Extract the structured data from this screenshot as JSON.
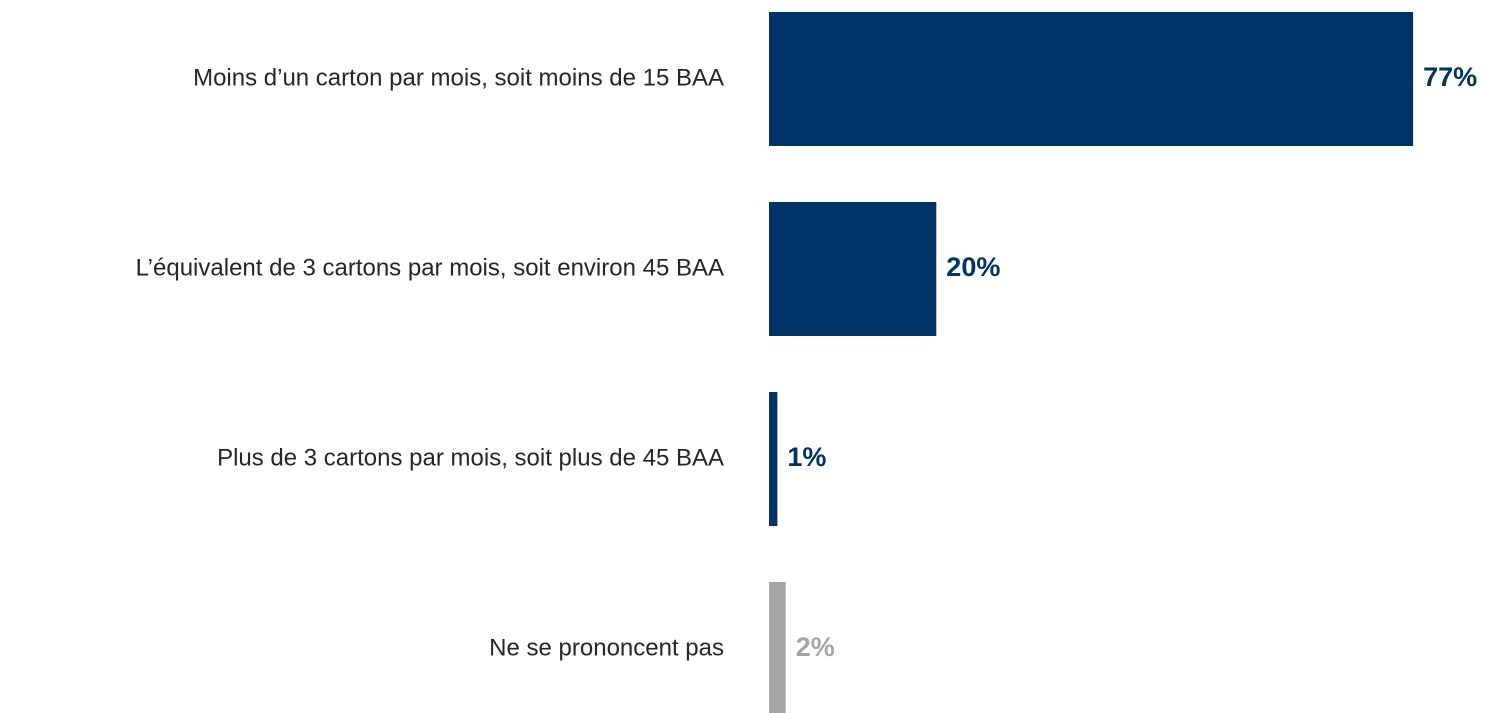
{
  "chart_data": {
    "type": "bar",
    "orientation": "horizontal",
    "categories": [
      "Moins d’un carton par mois, soit moins de 15 BAA",
      "L’équivalent de 3 cartons par mois, soit environ 45 BAA",
      "Plus de 3 cartons par mois, soit plus de 45 BAA",
      "Ne se prononcent pas"
    ],
    "values": [
      77,
      20,
      1,
      2
    ],
    "value_labels": [
      "77%",
      "20%",
      "1%",
      "2%"
    ],
    "colors": [
      "#003466",
      "#003466",
      "#003466",
      "#a6a6a6"
    ]
  }
}
